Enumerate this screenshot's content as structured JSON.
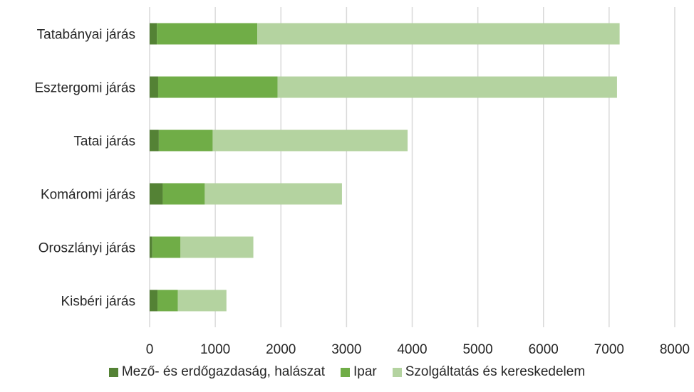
{
  "chart_data": {
    "type": "bar",
    "orientation": "horizontal",
    "stacked": true,
    "categories": [
      "Tatabányai járás",
      "Esztergomi járás",
      "Tatai járás",
      "Komáromi járás",
      "Oroszlányi járás",
      "Kisbéri járás"
    ],
    "series": [
      {
        "name": "Mező- és erdőgazdaság, halászat",
        "color": "#548235",
        "values": [
          110,
          130,
          140,
          200,
          40,
          120
        ]
      },
      {
        "name": "Ipar",
        "color": "#70ad47",
        "values": [
          1530,
          1820,
          820,
          640,
          430,
          310
        ]
      },
      {
        "name": "Szolgáltatás és kereskedelem",
        "color": "#b4d3a0",
        "values": [
          5520,
          5170,
          2970,
          2090,
          1110,
          740
        ]
      }
    ],
    "xlim": [
      0,
      8000
    ],
    "xticks": [
      "0",
      "1000",
      "2000",
      "3000",
      "4000",
      "5000",
      "6000",
      "7000",
      "8000"
    ],
    "grid": "vertical",
    "legend_position": "bottom"
  }
}
